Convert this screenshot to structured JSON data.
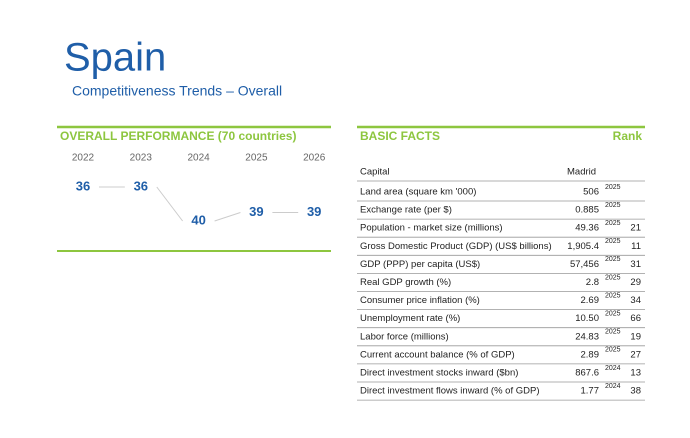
{
  "header": {
    "title": "Spain",
    "subtitle": "Competitiveness Trends – Overall"
  },
  "overall_performance": {
    "title": "OVERALL PERFORMANCE (70 countries)",
    "years": [
      "2022",
      "2023",
      "2024",
      "2025",
      "2026"
    ],
    "ranks": [
      36,
      36,
      40,
      39,
      39
    ]
  },
  "basic_facts": {
    "title": "BASIC FACTS",
    "rank_header": "Rank",
    "capital": {
      "label": "Capital",
      "value": "Madrid"
    },
    "rows": [
      {
        "label": "Land area (square km '000)",
        "value": "506",
        "year": "2025",
        "rank": null
      },
      {
        "label": "Exchange rate (per $)",
        "value": "0.885",
        "year": "2025",
        "rank": null
      },
      {
        "label": "Population - market size (millions)",
        "value": "49.36",
        "year": "2025",
        "rank": 21
      },
      {
        "label": "Gross Domestic Product (GDP) (US$ billions)",
        "value": "1,905.4",
        "year": "2025",
        "rank": 11
      },
      {
        "label": "GDP (PPP) per capita (US$)",
        "value": "57,456",
        "year": "2025",
        "rank": 31
      },
      {
        "label": "Real GDP growth (%)",
        "value": "2.8",
        "year": "2025",
        "rank": 29
      },
      {
        "label": "Consumer price inflation (%)",
        "value": "2.69",
        "year": "2025",
        "rank": 34
      },
      {
        "label": "Unemployment rate (%)",
        "value": "10.50",
        "year": "2025",
        "rank": 66
      },
      {
        "label": "Labor force (millions)",
        "value": "24.83",
        "year": "2025",
        "rank": 19
      },
      {
        "label": "Current account balance (% of GDP)",
        "value": "2.89",
        "year": "2025",
        "rank": 27
      },
      {
        "label": "Direct investment stocks inward ($bn)",
        "value": "867.6",
        "year": "2024",
        "rank": 13
      },
      {
        "label": "Direct investment flows inward (% of GDP)",
        "value": "1.77",
        "year": "2024",
        "rank": 38
      }
    ]
  }
}
